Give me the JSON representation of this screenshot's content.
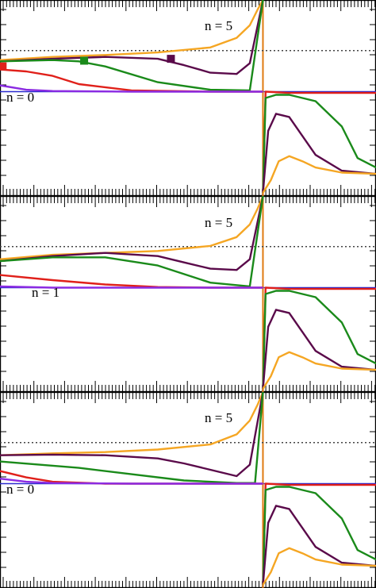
{
  "chart_data": [
    {
      "type": "line",
      "panel": "top",
      "labels": [
        "n = 5",
        "n = 0"
      ],
      "x_range": [
        -1,
        0.43
      ],
      "y_range": [
        -1.65,
        1.45
      ],
      "dotted_reference_y": 0.65,
      "series": [
        {
          "color": "#f5a623",
          "x": [
            -1,
            -0.8,
            -0.6,
            -0.4,
            -0.2,
            -0.1,
            -0.05,
            -0.02,
            0
          ],
          "y": [
            0.5,
            0.55,
            0.58,
            0.62,
            0.7,
            0.85,
            1.05,
            1.3,
            1.45
          ]
        },
        {
          "color": "#5a0a4a",
          "x": [
            -1,
            -0.8,
            -0.6,
            -0.4,
            -0.3,
            -0.2,
            -0.1,
            -0.05,
            0
          ],
          "y": [
            0.48,
            0.52,
            0.55,
            0.52,
            0.42,
            0.3,
            0.28,
            0.45,
            1.45
          ]
        },
        {
          "color": "#1a8a1a",
          "x": [
            -1,
            -0.8,
            -0.7,
            -0.6,
            -0.4,
            -0.2,
            -0.05,
            0
          ],
          "y": [
            0.48,
            0.5,
            0.48,
            0.4,
            0.15,
            0.03,
            0.02,
            1.45
          ]
        },
        {
          "color": "#e0201a",
          "x": [
            -1,
            -0.9,
            -0.8,
            -0.7,
            -0.5,
            -0.2,
            0
          ],
          "y": [
            0.35,
            0.32,
            0.25,
            0.12,
            0.02,
            0.0,
            0.0
          ]
        },
        {
          "color": "#8b2be2",
          "x": [
            -1,
            -0.9,
            -0.8,
            -0.5,
            0
          ],
          "y": [
            0.1,
            0.03,
            0.01,
            0.0,
            0.0
          ]
        },
        {
          "color": "#e0201a",
          "x": [
            0.0,
            0.01,
            0.1,
            0.2,
            0.3,
            0.43
          ],
          "y": [
            -1.6,
            0.0,
            -0.02,
            -0.02,
            -0.02,
            -0.02
          ]
        },
        {
          "color": "#1a8a1a",
          "x": [
            0.0,
            0.01,
            0.05,
            0.1,
            0.2,
            0.3,
            0.36,
            0.43
          ],
          "y": [
            -1.6,
            -0.1,
            -0.05,
            -0.05,
            -0.15,
            -0.55,
            -1.05,
            -1.2
          ]
        },
        {
          "color": "#5a0a4a",
          "x": [
            0.0,
            0.02,
            0.05,
            0.1,
            0.15,
            0.2,
            0.3,
            0.43
          ],
          "y": [
            -1.6,
            -0.62,
            -0.35,
            -0.4,
            -0.7,
            -1.0,
            -1.25,
            -1.3
          ]
        },
        {
          "color": "#f5a623",
          "x": [
            0.0,
            0.03,
            0.06,
            0.1,
            0.15,
            0.2,
            0.3,
            0.43
          ],
          "y": [
            -1.6,
            -1.4,
            -1.1,
            -1.02,
            -1.1,
            -1.2,
            -1.28,
            -1.3
          ]
        }
      ],
      "markers": [
        {
          "color": "#e0201a",
          "x": -0.99,
          "y": 0.4
        },
        {
          "color": "#1a8a1a",
          "x": -0.68,
          "y": 0.49
        },
        {
          "color": "#5a0a4a",
          "x": -0.35,
          "y": 0.52
        }
      ]
    },
    {
      "type": "line",
      "panel": "middle",
      "labels": [
        "n = 5",
        "n = 1"
      ],
      "x_range": [
        -1,
        0.43
      ],
      "y_range": [
        -1.65,
        1.45
      ],
      "dotted_reference_y": 0.65,
      "series": [
        {
          "color": "#f5a623",
          "x": [
            -1,
            -0.8,
            -0.6,
            -0.4,
            -0.2,
            -0.1,
            -0.05,
            -0.02,
            0
          ],
          "y": [
            0.45,
            0.52,
            0.55,
            0.58,
            0.66,
            0.8,
            1.0,
            1.25,
            1.45
          ]
        },
        {
          "color": "#5a0a4a",
          "x": [
            -1,
            -0.8,
            -0.6,
            -0.4,
            -0.3,
            -0.2,
            -0.1,
            -0.05,
            0
          ],
          "y": [
            0.42,
            0.5,
            0.55,
            0.5,
            0.4,
            0.3,
            0.28,
            0.45,
            1.45
          ]
        },
        {
          "color": "#1a8a1a",
          "x": [
            -1,
            -0.8,
            -0.6,
            -0.4,
            -0.2,
            -0.05,
            0
          ],
          "y": [
            0.42,
            0.48,
            0.48,
            0.35,
            0.08,
            0.02,
            1.45
          ]
        },
        {
          "color": "#e0201a",
          "x": [
            -1,
            -0.8,
            -0.6,
            -0.4,
            -0.2,
            0
          ],
          "y": [
            0.2,
            0.12,
            0.05,
            0.01,
            0.0,
            0.0
          ]
        },
        {
          "color": "#8b2be2",
          "x": [
            -1,
            -0.8,
            -0.5,
            0
          ],
          "y": [
            0.02,
            0.0,
            0.0,
            0.0
          ]
        },
        {
          "color": "#e0201a",
          "x": [
            0.0,
            0.01,
            0.1,
            0.2,
            0.3,
            0.43
          ],
          "y": [
            -1.6,
            0.0,
            -0.02,
            -0.02,
            -0.02,
            -0.02
          ]
        },
        {
          "color": "#1a8a1a",
          "x": [
            0.0,
            0.01,
            0.05,
            0.1,
            0.2,
            0.3,
            0.36,
            0.43
          ],
          "y": [
            -1.6,
            -0.1,
            -0.05,
            -0.05,
            -0.15,
            -0.55,
            -1.05,
            -1.2
          ]
        },
        {
          "color": "#5a0a4a",
          "x": [
            0.0,
            0.02,
            0.05,
            0.1,
            0.15,
            0.2,
            0.3,
            0.43
          ],
          "y": [
            -1.6,
            -0.62,
            -0.35,
            -0.4,
            -0.7,
            -1.0,
            -1.25,
            -1.3
          ]
        },
        {
          "color": "#f5a623",
          "x": [
            0.0,
            0.03,
            0.06,
            0.1,
            0.15,
            0.2,
            0.3,
            0.43
          ],
          "y": [
            -1.6,
            -1.4,
            -1.1,
            -1.02,
            -1.1,
            -1.2,
            -1.28,
            -1.3
          ]
        }
      ],
      "markers": []
    },
    {
      "type": "line",
      "panel": "bottom",
      "labels": [
        "n = 5",
        "n = 0"
      ],
      "x_range": [
        -1,
        0.43
      ],
      "y_range": [
        -1.65,
        1.45
      ],
      "dotted_reference_y": 0.65,
      "series": [
        {
          "color": "#f5a623",
          "x": [
            -1,
            -0.8,
            -0.6,
            -0.4,
            -0.2,
            -0.1,
            -0.05,
            -0.02,
            0
          ],
          "y": [
            0.45,
            0.48,
            0.5,
            0.54,
            0.62,
            0.78,
            1.0,
            1.25,
            1.45
          ]
        },
        {
          "color": "#5a0a4a",
          "x": [
            -1,
            -0.8,
            -0.6,
            -0.4,
            -0.3,
            -0.2,
            -0.1,
            -0.05,
            0
          ],
          "y": [
            0.45,
            0.46,
            0.45,
            0.4,
            0.32,
            0.22,
            0.12,
            0.3,
            1.45
          ]
        },
        {
          "color": "#1a8a1a",
          "x": [
            -1,
            -0.85,
            -0.7,
            -0.5,
            -0.3,
            -0.1,
            -0.03,
            0
          ],
          "y": [
            0.35,
            0.3,
            0.25,
            0.15,
            0.05,
            0.01,
            0.01,
            1.45
          ]
        },
        {
          "color": "#e0201a",
          "x": [
            -1,
            -0.9,
            -0.8,
            -0.6,
            -0.4,
            0
          ],
          "y": [
            0.2,
            0.1,
            0.03,
            0.0,
            0.0,
            0.0
          ]
        },
        {
          "color": "#8b2be2",
          "x": [
            -1,
            -0.9,
            -0.8,
            -0.5,
            0
          ],
          "y": [
            0.08,
            0.03,
            0.01,
            0.0,
            0.0
          ]
        },
        {
          "color": "#e0201a",
          "x": [
            0.0,
            0.01,
            0.1,
            0.2,
            0.3,
            0.43
          ],
          "y": [
            -1.6,
            0.0,
            -0.02,
            -0.02,
            -0.02,
            -0.02
          ]
        },
        {
          "color": "#1a8a1a",
          "x": [
            0.0,
            0.01,
            0.05,
            0.1,
            0.2,
            0.3,
            0.36,
            0.43
          ],
          "y": [
            -1.6,
            -0.1,
            -0.05,
            -0.05,
            -0.15,
            -0.55,
            -1.05,
            -1.2
          ]
        },
        {
          "color": "#5a0a4a",
          "x": [
            0.0,
            0.02,
            0.05,
            0.1,
            0.15,
            0.2,
            0.3,
            0.43
          ],
          "y": [
            -1.6,
            -0.62,
            -0.35,
            -0.4,
            -0.7,
            -1.0,
            -1.25,
            -1.3
          ]
        },
        {
          "color": "#f5a623",
          "x": [
            0.0,
            0.03,
            0.06,
            0.1,
            0.15,
            0.2,
            0.3,
            0.43
          ],
          "y": [
            -1.6,
            -1.4,
            -1.1,
            -1.02,
            -1.1,
            -1.2,
            -1.28,
            -1.3
          ]
        }
      ],
      "markers": []
    }
  ]
}
